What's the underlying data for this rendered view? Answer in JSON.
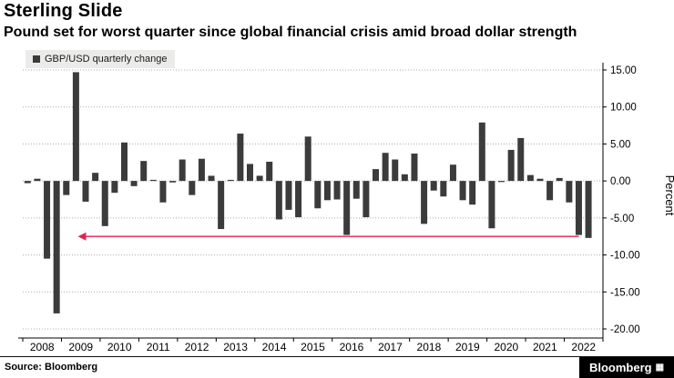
{
  "header": {
    "title": "Sterling Slide",
    "subtitle": "Pound set for worst quarter since global financial crisis amid broad dollar strength"
  },
  "legend": {
    "label": "GBP/USD quarterly change"
  },
  "footer": {
    "source": "Source: Bloomberg",
    "brand": "Bloomberg",
    "logo_glyph": "▦"
  },
  "colors": {
    "bar": "#3b3b3b",
    "arrow": "#e0244f",
    "grid": "#ababab",
    "axis": "#000000",
    "legend_bg": "#ebebe9"
  },
  "chart_data": {
    "type": "bar",
    "title": "Sterling Slide",
    "subtitle": "Pound set for worst quarter since global financial crisis amid broad dollar strength",
    "series_name": "GBP/USD quarterly change",
    "ylabel": "Percent",
    "x_years": [
      "2008",
      "2009",
      "2010",
      "2011",
      "2012",
      "2013",
      "2014",
      "2015",
      "2016",
      "2017",
      "2018",
      "2019",
      "2020",
      "2021",
      "2022"
    ],
    "frequency": "quarterly",
    "x_start": "2008 Q1",
    "values": [
      -0.3,
      0.3,
      -10.5,
      -17.9,
      -1.9,
      14.7,
      -2.8,
      1.1,
      -6.1,
      -1.6,
      5.2,
      -0.7,
      2.7,
      0.1,
      -2.9,
      -0.2,
      2.9,
      -1.9,
      3.0,
      0.7,
      -6.5,
      0.1,
      6.4,
      2.3,
      0.7,
      2.6,
      -5.2,
      -3.9,
      -4.9,
      6.0,
      -3.7,
      -2.6,
      -2.5,
      -7.3,
      -2.4,
      -4.9,
      1.6,
      3.8,
      2.9,
      0.9,
      3.7,
      -5.8,
      -1.3,
      -2.1,
      2.2,
      -2.6,
      -3.2,
      7.9,
      -6.4,
      -0.1,
      4.2,
      5.8,
      0.8,
      0.3,
      -2.6,
      0.4,
      -2.9,
      -7.3,
      -7.7
    ],
    "ylim": [
      -20,
      15
    ],
    "yticks": [
      15,
      10,
      5,
      0,
      -5,
      -10,
      -15,
      -20
    ],
    "ytick_labels": [
      "15.00",
      "10.00",
      "5.00",
      "0.00",
      "-5.00",
      "-10.00",
      "-15.00",
      "-20.00"
    ],
    "grid": "dotted-horizontal",
    "legend_position": "top-left",
    "annotation": {
      "type": "arrow-left",
      "y": -7.5,
      "from_quarter_index": 57,
      "to_quarter_index": 6,
      "meaning": "level of current quarterly drop traced back to the 2008-2009 financial crisis"
    }
  }
}
